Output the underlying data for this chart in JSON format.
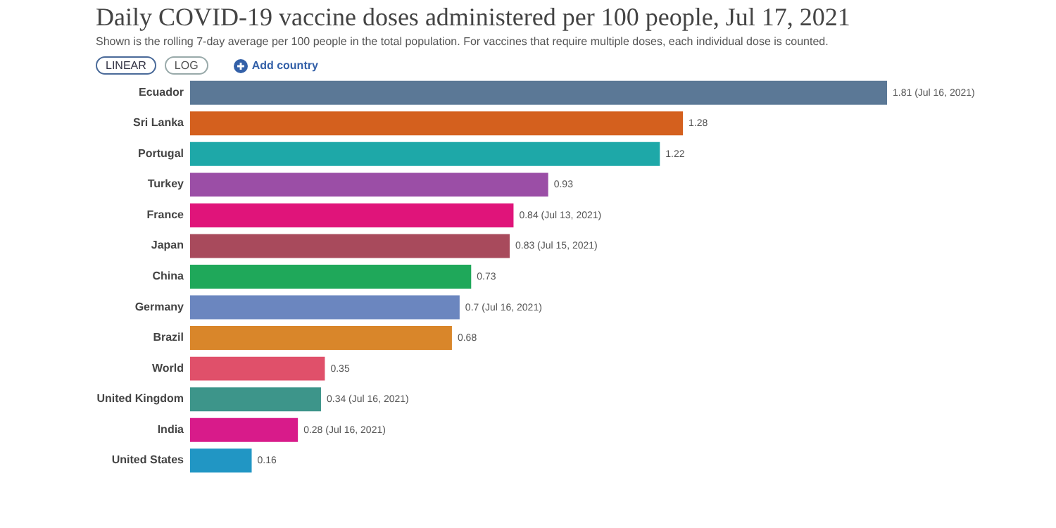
{
  "chart_data": {
    "type": "bar",
    "orientation": "horizontal",
    "title": "Daily COVID-19 vaccine doses administered per 100 people, Jul 17, 2021",
    "subtitle": "Shown is the rolling 7-day average per 100 people in the total population. For vaccines that require multiple doses, each individual dose is counted.",
    "annotations": [
      "LINEAR",
      "LOG",
      "Add country"
    ],
    "categories": [
      "Ecuador",
      "Sri Lanka",
      "Portugal",
      "Turkey",
      "France",
      "Japan",
      "China",
      "Germany",
      "Brazil",
      "World",
      "United Kingdom",
      "India",
      "United States"
    ],
    "values": [
      1.81,
      1.28,
      1.22,
      0.93,
      0.84,
      0.83,
      0.73,
      0.7,
      0.68,
      0.35,
      0.34,
      0.28,
      0.16
    ],
    "colors": [
      "#5b7896",
      "#d4601e",
      "#1ea8a8",
      "#9b4ea6",
      "#e0147a",
      "#a84a5c",
      "#1fa85a",
      "#6b86bf",
      "#d9862a",
      "#e0506a",
      "#3d958a",
      "#d81b8a",
      "#2196c4"
    ],
    "value_labels": [
      "1.81 (Jul 16, 2021)",
      "1.28",
      "1.22",
      "0.93",
      "0.84 (Jul 13, 2021)",
      "0.83 (Jul 15, 2021)",
      "0.73",
      "0.7 (Jul 16, 2021)",
      "0.68",
      "0.35",
      "0.34 (Jul 16, 2021)",
      "0.28 (Jul 16, 2021)",
      "0.16"
    ]
  }
}
